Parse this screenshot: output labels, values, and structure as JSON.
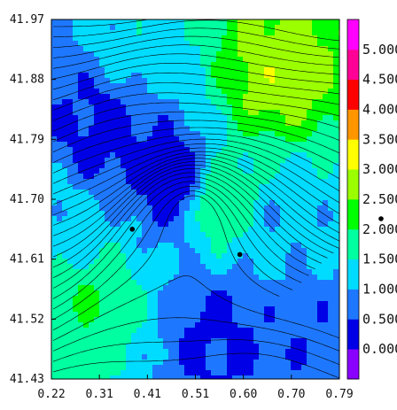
{
  "chart_data": {
    "type": "heatmap",
    "title": "",
    "xlabel": "",
    "ylabel": "",
    "x_ticks": [
      "0.22",
      "0.31",
      "0.41",
      "0.51",
      "0.60",
      "0.70",
      "0.79"
    ],
    "y_ticks": [
      "41.97",
      "41.88",
      "41.79",
      "41.70",
      "41.61",
      "41.52",
      "41.43"
    ],
    "xlim": [
      0.22,
      0.79
    ],
    "ylim": [
      41.43,
      41.97
    ],
    "colorbar": {
      "labels": [
        "0.000",
        "0.500",
        "1.000",
        "1.500",
        "2.000",
        "2.500",
        "3.000",
        "3.500",
        "4.000",
        "4.500",
        "5.000"
      ],
      "bins": [
        {
          "lo": -0.5,
          "hi": 0.0,
          "color": "#8a00ff"
        },
        {
          "lo": 0.0,
          "hi": 0.5,
          "color": "#0000e6"
        },
        {
          "lo": 0.5,
          "hi": 1.0,
          "color": "#1e78ff"
        },
        {
          "lo": 1.0,
          "hi": 1.5,
          "color": "#00dcff"
        },
        {
          "lo": 1.5,
          "hi": 2.0,
          "color": "#00ffa0"
        },
        {
          "lo": 2.0,
          "hi": 2.5,
          "color": "#00ff00"
        },
        {
          "lo": 2.5,
          "hi": 3.0,
          "color": "#9bff00"
        },
        {
          "lo": 3.0,
          "hi": 3.5,
          "color": "#ffff00"
        },
        {
          "lo": 3.5,
          "hi": 4.0,
          "color": "#ff9600"
        },
        {
          "lo": 4.0,
          "hi": 4.5,
          "color": "#ff0000"
        },
        {
          "lo": 4.5,
          "hi": 5.0,
          "color": "#ff0096"
        },
        {
          "lo": 5.0,
          "hi": 5.5,
          "color": "#ff00ff"
        }
      ]
    },
    "markers": [
      {
        "x": 0.38,
        "y": 41.655
      },
      {
        "x": 0.593,
        "y": 41.617
      }
    ],
    "field_description_regions": [
      {
        "x": 0.33,
        "y": 41.8,
        "value": 0.3
      },
      {
        "x": 0.46,
        "y": 41.73,
        "value": 0.2
      },
      {
        "x": 0.26,
        "y": 41.64,
        "value": 1.2
      },
      {
        "x": 0.66,
        "y": 41.89,
        "value": 2.8
      },
      {
        "x": 0.56,
        "y": 41.7,
        "value": 1.9
      },
      {
        "x": 0.68,
        "y": 41.66,
        "value": 1.1
      },
      {
        "x": 0.3,
        "y": 41.56,
        "value": 2.0
      },
      {
        "x": 0.55,
        "y": 41.5,
        "value": 0.4
      },
      {
        "x": 0.72,
        "y": 41.47,
        "value": 0.6
      },
      {
        "x": 0.4,
        "y": 41.93,
        "value": 1.3
      }
    ]
  }
}
